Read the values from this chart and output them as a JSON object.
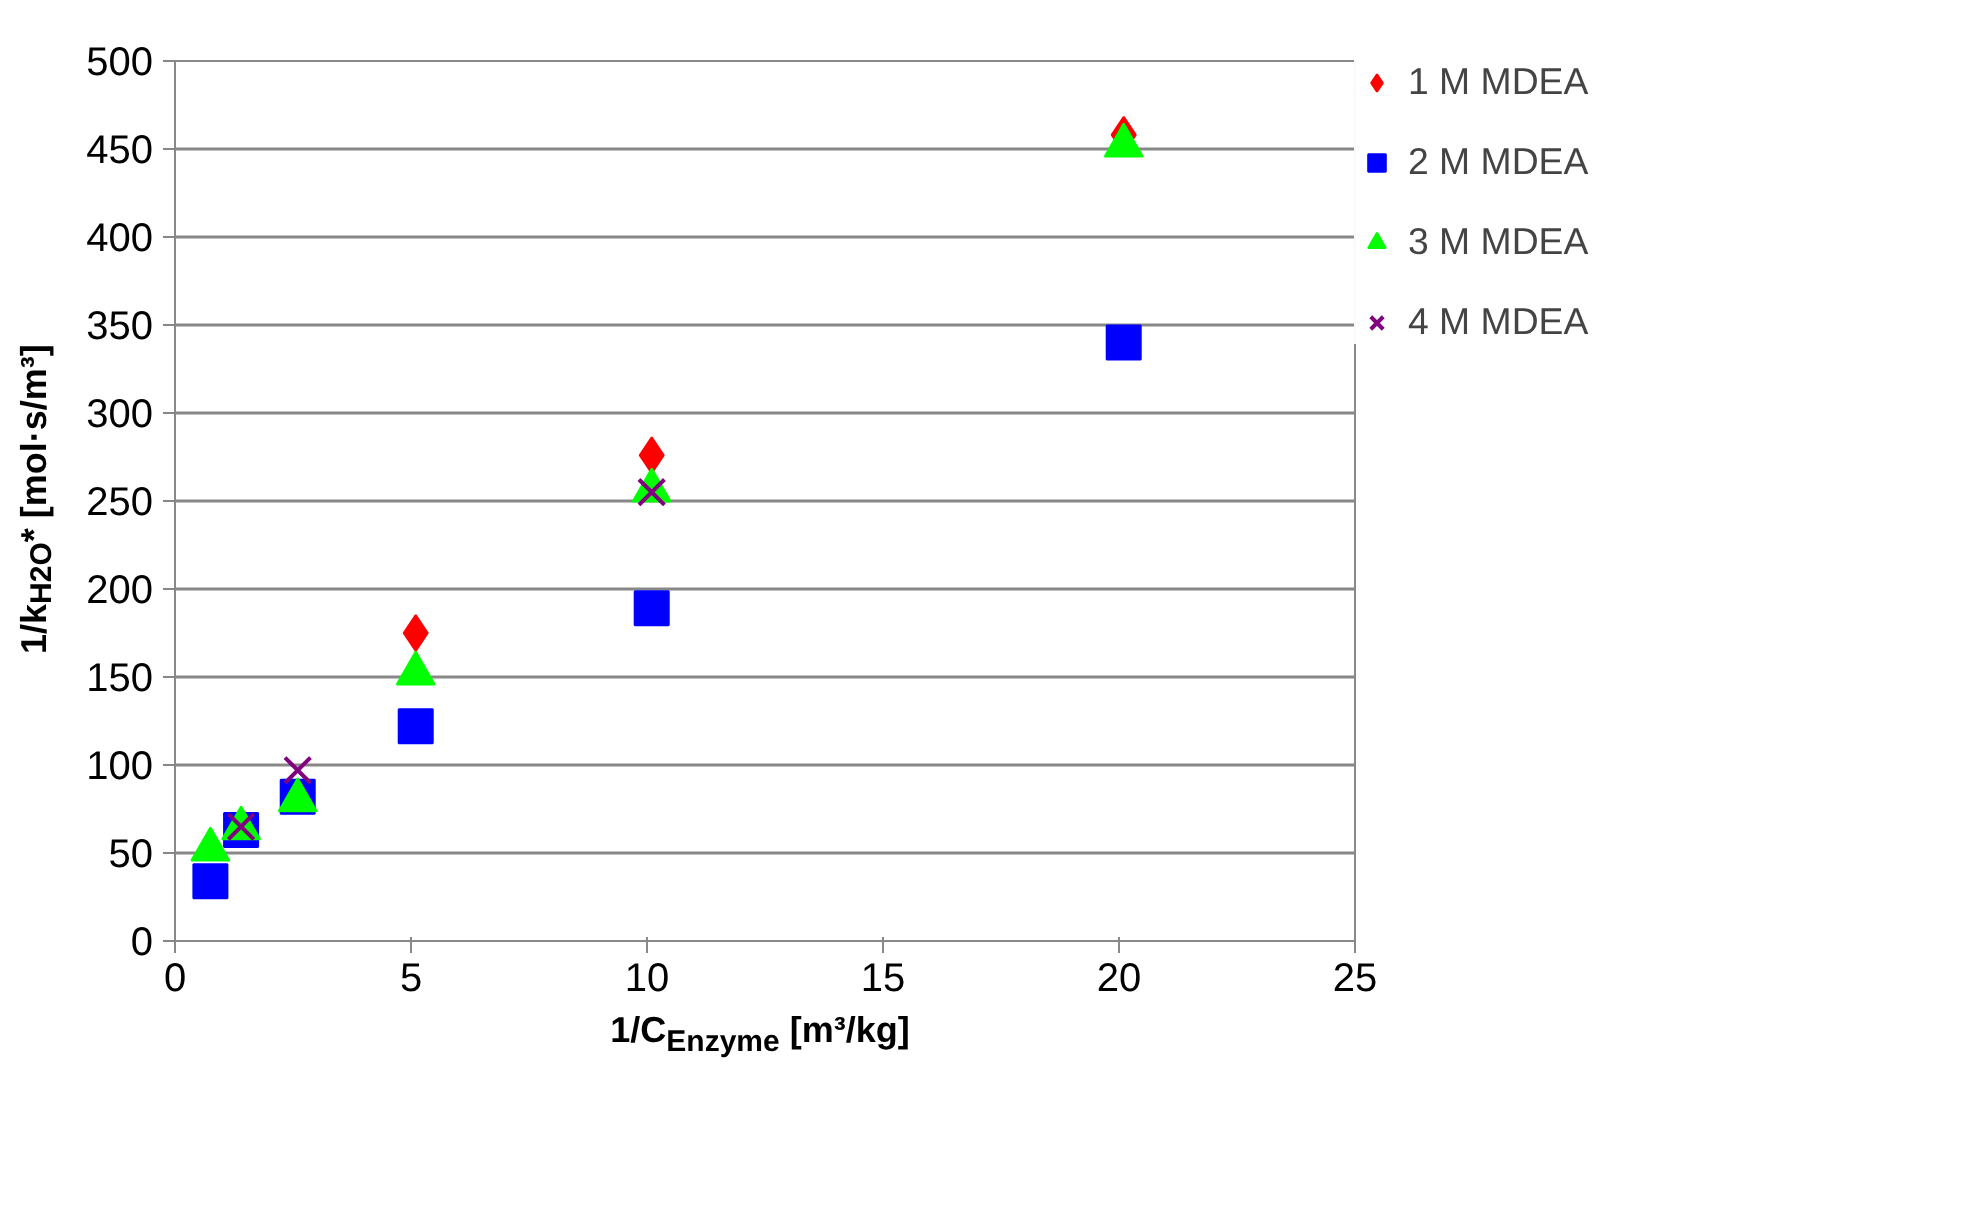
{
  "chart_data": {
    "type": "scatter",
    "xlabel": "1/C$_{Enzyme}$ [m³/kg]",
    "ylabel": "1/k$_{H2O}$* [mol·s/m³]",
    "xlim": [
      0,
      25
    ],
    "xticks": [
      0,
      5,
      10,
      15,
      20,
      25
    ],
    "ylim": [
      0,
      500
    ],
    "yticks": [
      0,
      50,
      100,
      150,
      200,
      250,
      300,
      350,
      400,
      450,
      500
    ],
    "grid": "y",
    "legend": "right",
    "series": [
      {
        "name": "1 M MDEA",
        "color": "#ff0000",
        "marker": "diamond",
        "x": [
          5.1,
          10.1,
          20.1
        ],
        "values": [
          175,
          276,
          458
        ]
      },
      {
        "name": "2 M MDEA",
        "color": "#0000ff",
        "marker": "square",
        "x": [
          0.75,
          1.4,
          2.6,
          5.1,
          10.1,
          20.1
        ],
        "values": [
          34,
          63,
          82,
          122,
          189,
          340
        ]
      },
      {
        "name": "3 M MDEA",
        "color": "#00ff00",
        "marker": "triangle",
        "x": [
          0.75,
          1.4,
          2.6,
          5.1,
          10.1,
          20.1
        ],
        "values": [
          52,
          64,
          80,
          152,
          256,
          452
        ]
      },
      {
        "name": "4 M MDEA",
        "color": "#800080",
        "marker": "cross",
        "x": [
          1.4,
          2.6,
          10.1
        ],
        "values": [
          65,
          97,
          255
        ]
      }
    ]
  }
}
